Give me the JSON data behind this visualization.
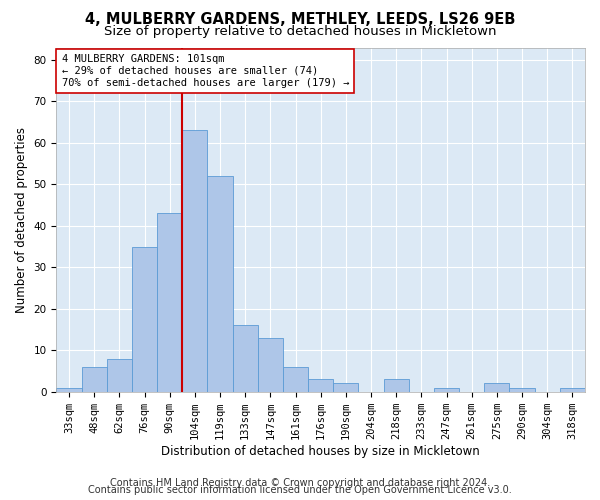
{
  "title": "4, MULBERRY GARDENS, METHLEY, LEEDS, LS26 9EB",
  "subtitle": "Size of property relative to detached houses in Mickletown",
  "xlabel": "Distribution of detached houses by size in Mickletown",
  "ylabel": "Number of detached properties",
  "bin_labels": [
    "33sqm",
    "48sqm",
    "62sqm",
    "76sqm",
    "90sqm",
    "104sqm",
    "119sqm",
    "133sqm",
    "147sqm",
    "161sqm",
    "176sqm",
    "190sqm",
    "204sqm",
    "218sqm",
    "233sqm",
    "247sqm",
    "261sqm",
    "275sqm",
    "290sqm",
    "304sqm",
    "318sqm"
  ],
  "bar_heights": [
    1,
    6,
    8,
    35,
    43,
    63,
    52,
    16,
    13,
    6,
    3,
    2,
    0,
    3,
    0,
    1,
    0,
    2,
    1,
    0,
    1
  ],
  "bar_color": "#aec6e8",
  "bar_edge_color": "#5b9bd5",
  "vline_x_index": 4.5,
  "vline_color": "#cc0000",
  "annotation_text": "4 MULBERRY GARDENS: 101sqm\n← 29% of detached houses are smaller (74)\n70% of semi-detached houses are larger (179) →",
  "annotation_box_color": "#ffffff",
  "annotation_box_edge": "#cc0000",
  "ylim": [
    0,
    83
  ],
  "yticks": [
    0,
    10,
    20,
    30,
    40,
    50,
    60,
    70,
    80
  ],
  "footer1": "Contains HM Land Registry data © Crown copyright and database right 2024.",
  "footer2": "Contains public sector information licensed under the Open Government Licence v3.0.",
  "background_color": "#ffffff",
  "plot_bg_color": "#dce9f5",
  "grid_color": "#ffffff",
  "title_fontsize": 10.5,
  "subtitle_fontsize": 9.5,
  "axis_label_fontsize": 8.5,
  "tick_fontsize": 7.5,
  "footer_fontsize": 7.0,
  "annotation_fontsize": 7.5
}
